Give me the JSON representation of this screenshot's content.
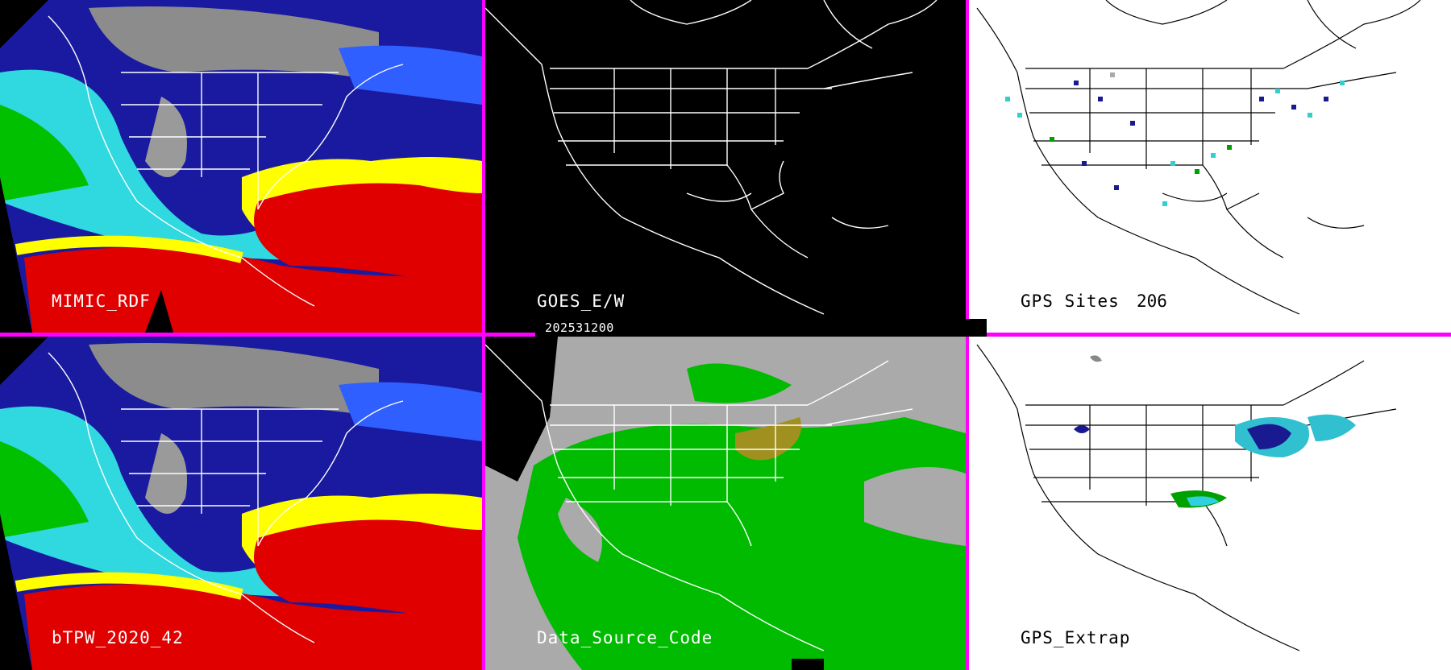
{
  "panels": [
    {
      "id": "mimic",
      "label": "MIMIC_RDF",
      "label_color": "#ffffff",
      "background": "#000000"
    },
    {
      "id": "goes",
      "label": "GOES_E/W",
      "label_color": "#ffffff",
      "background": "#000000"
    },
    {
      "id": "gps",
      "label": "GPS Sites",
      "count": "206",
      "label_color": "#000000",
      "background": "#ffffff"
    },
    {
      "id": "btpw",
      "label": "bTPW_2020_42",
      "label_color": "#ffffff",
      "background": "#000000"
    },
    {
      "id": "dsc",
      "label": "Data_Source_Code",
      "label_color": "#ffffff",
      "background": "#b0b0b0"
    },
    {
      "id": "extrap",
      "label": "GPS_Extrap",
      "label_color": "#000000",
      "background": "#ffffff"
    }
  ],
  "timestamp": "202531200",
  "colors": {
    "separator": "#ff00ff",
    "tpw_palette": [
      "#ffffff",
      "#888888",
      "#1010a0",
      "#3050ff",
      "#30e0e0",
      "#00cc00",
      "#ffff00",
      "#ff0000",
      "#cc00cc"
    ],
    "dsc_fill": "#00bb00",
    "dsc_gap": "#aaaaaa",
    "dsc_special": "#a09020"
  }
}
